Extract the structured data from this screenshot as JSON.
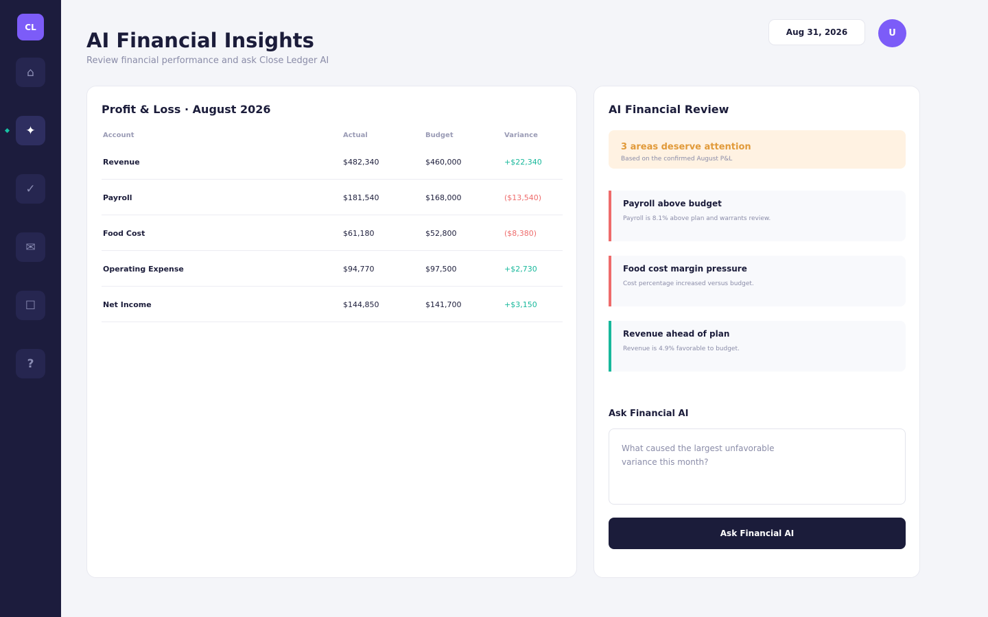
{
  "sidebar": {
    "logo": "CL",
    "items": [
      {
        "icon": "home-icon",
        "glyph": "⌂"
      },
      {
        "icon": "sparkle-icon",
        "glyph": "✦"
      },
      {
        "icon": "check-icon",
        "glyph": "✓"
      },
      {
        "icon": "mail-icon",
        "glyph": "✉"
      },
      {
        "icon": "square-icon",
        "glyph": "☐"
      },
      {
        "icon": "help-icon",
        "glyph": "?"
      }
    ]
  },
  "header": {
    "title": "AI Financial Insights",
    "subtitle": "Review financial performance and ask Close Ledger AI",
    "date": "Aug 31, 2026",
    "avatar": "U"
  },
  "pl": {
    "title": "Profit & Loss · August 2026",
    "columns": [
      "Account",
      "Actual",
      "Budget",
      "Variance"
    ],
    "rows": [
      {
        "account": "Revenue",
        "actual": "$482,340",
        "budget": "$460,000",
        "variance": "+$22,340"
      },
      {
        "account": "Payroll",
        "actual": "$181,540",
        "budget": "$168,000",
        "variance": "($13,540)"
      },
      {
        "account": "Food Cost",
        "actual": "$61,180",
        "budget": "$52,800",
        "variance": "($8,380)"
      },
      {
        "account": "Operating Expense",
        "actual": "$94,770",
        "budget": "$97,500",
        "variance": "+$2,730"
      },
      {
        "account": "Net Income",
        "actual": "$144,850",
        "budget": "$141,700",
        "variance": "+$3,150"
      }
    ]
  },
  "review": {
    "title": "AI Financial Review",
    "alert_title": "3 areas deserve attention",
    "alert_sub": "Based on the confirmed August P&L",
    "insights": [
      {
        "title": "Payroll above budget",
        "desc": "Payroll is 8.1% above plan and warrants review."
      },
      {
        "title": "Food cost margin pressure",
        "desc": "Cost percentage increased versus budget."
      },
      {
        "title": "Revenue ahead of plan",
        "desc": "Revenue is 4.9% favorable to budget."
      }
    ],
    "ask_label": "Ask Financial AI",
    "ask_placeholder": "What caused the largest unfavorable variance this month?",
    "ask_button": "Ask Financial AI"
  },
  "colors": {
    "accent": "#7c5cf8",
    "positive": "#17b89b",
    "negative": "#ee6b6b",
    "warning": "#e19a3a",
    "sidebar": "#1c1c3d"
  }
}
